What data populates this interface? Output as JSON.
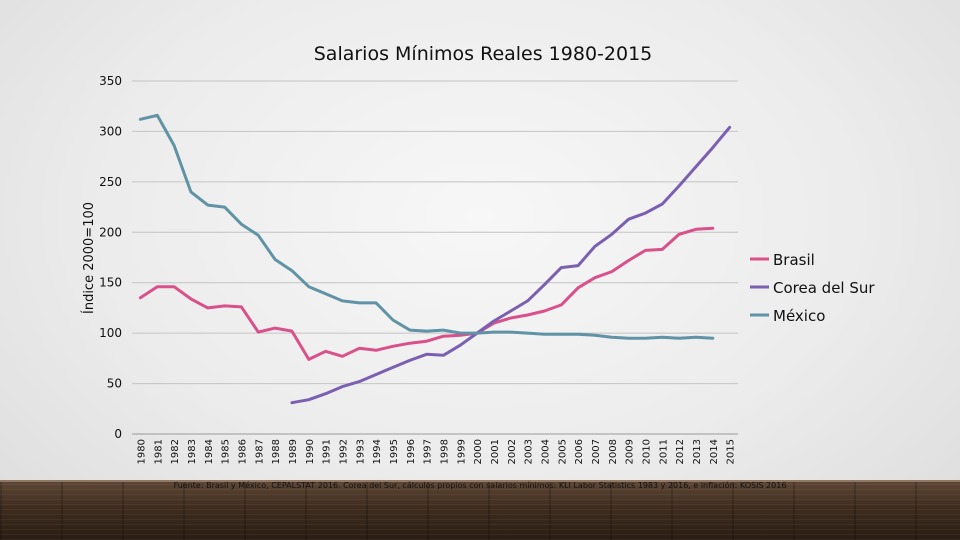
{
  "chart_data": {
    "type": "line",
    "title": "Salarios Mínimos Reales 1980-2015",
    "ylabel": "Índice 2000=100",
    "xlabel": "",
    "ylim": [
      0,
      350
    ],
    "yticks": [
      0,
      50,
      100,
      150,
      200,
      250,
      300,
      350
    ],
    "grid": true,
    "legend_position": "right",
    "categories": [
      "1980",
      "1981",
      "1982",
      "1983",
      "1984",
      "1985",
      "1986",
      "1987",
      "1988",
      "1989",
      "1990",
      "1991",
      "1992",
      "1993",
      "1994",
      "1995",
      "1996",
      "1997",
      "1998",
      "1999",
      "2000",
      "2001",
      "2002",
      "2003",
      "2004",
      "2005",
      "2006",
      "2007",
      "2008",
      "2009",
      "2010",
      "2011",
      "2012",
      "2013",
      "2014",
      "2015"
    ],
    "series": [
      {
        "name": "Brasil",
        "color": "#d9508a",
        "values": [
          135,
          146,
          146,
          134,
          125,
          127,
          126,
          101,
          105,
          102,
          74,
          82,
          77,
          85,
          83,
          87,
          90,
          92,
          97,
          98,
          100,
          110,
          115,
          118,
          122,
          128,
          145,
          155,
          161,
          172,
          182,
          183,
          198,
          203,
          204,
          null
        ]
      },
      {
        "name": "Corea del Sur",
        "color": "#7b5fb0",
        "values": [
          null,
          null,
          null,
          null,
          null,
          null,
          null,
          null,
          null,
          31,
          34,
          40,
          47,
          52,
          59,
          66,
          73,
          79,
          78,
          88,
          100,
          112,
          122,
          132,
          148,
          165,
          167,
          186,
          198,
          213,
          219,
          228,
          246,
          265,
          284,
          304
        ]
      },
      {
        "name": "México",
        "color": "#5f93a5",
        "values": [
          312,
          316,
          286,
          240,
          227,
          225,
          208,
          197,
          173,
          162,
          146,
          139,
          132,
          130,
          130,
          113,
          103,
          102,
          103,
          100,
          100,
          101,
          101,
          100,
          99,
          99,
          99,
          98,
          96,
          95,
          95,
          96,
          95,
          96,
          95,
          null
        ]
      }
    ]
  },
  "source_text": "Fuente: Brasil y México, CEPALSTAT 2016. Corea del Sur, cálculos propios con salarios mínimos: KLI Labor Statistics 1983 y 2016, e inflación: KOSIS 2016"
}
